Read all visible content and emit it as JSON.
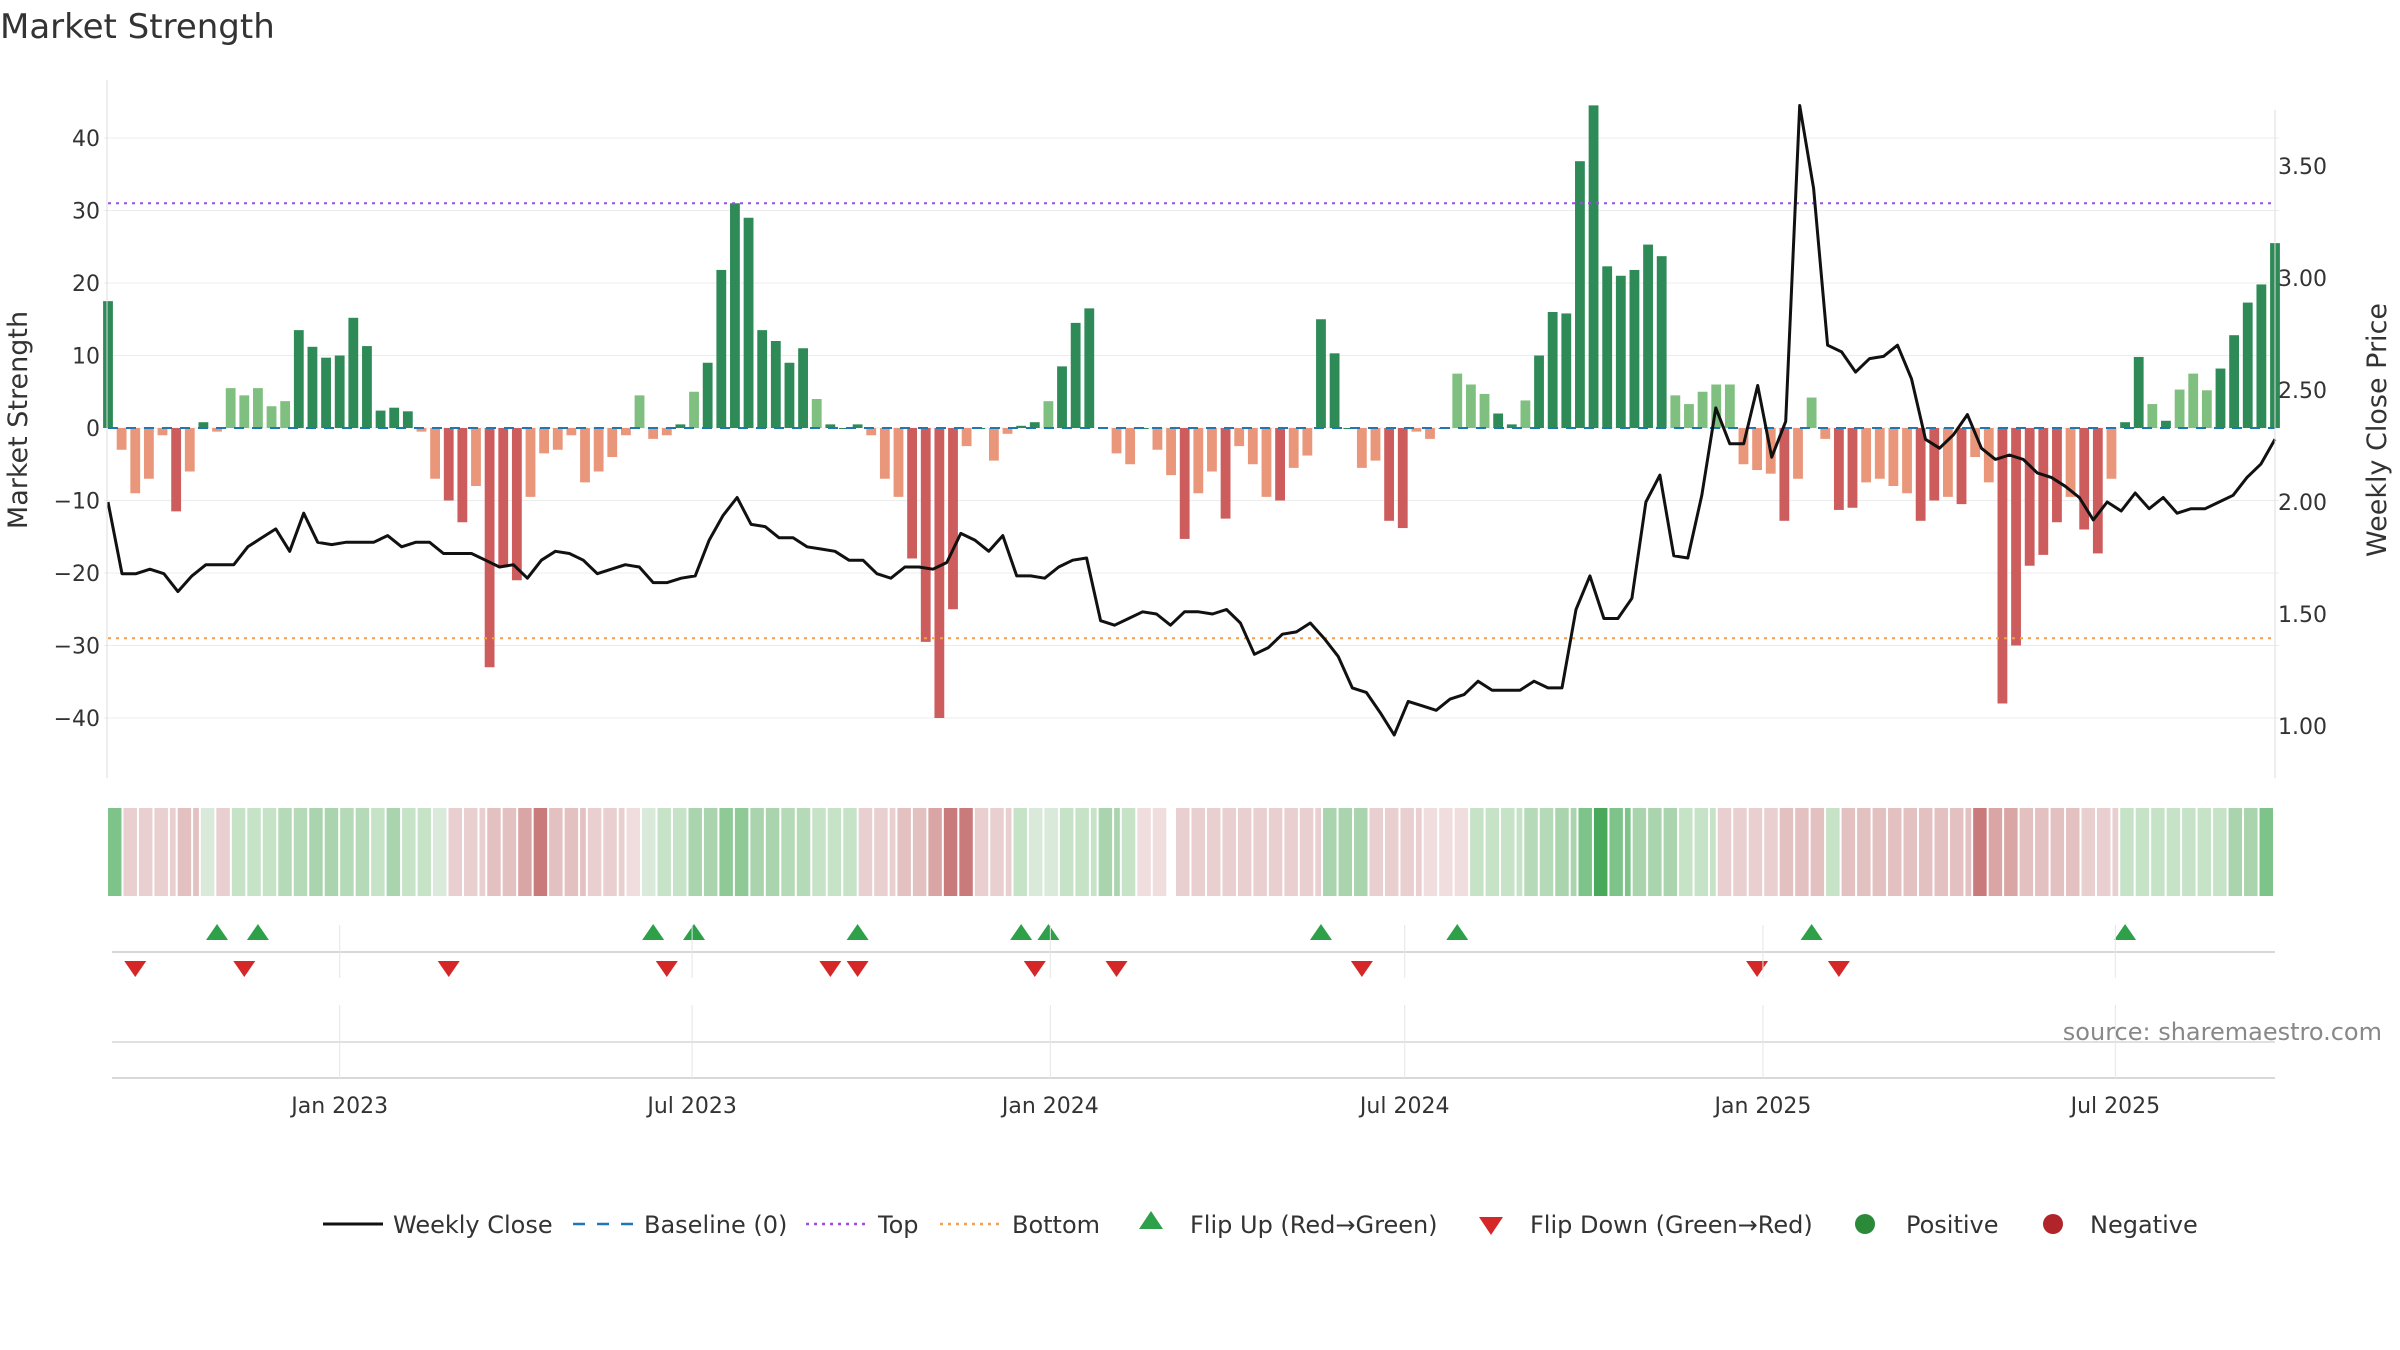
{
  "chart_data": {
    "type": "bar",
    "title": "Market Strength",
    "ylabel": "Market Strength",
    "y2label": "Weekly Close Price",
    "ylim": [
      -48,
      48
    ],
    "y2lim": [
      0.83,
      3.85
    ],
    "yticks": [
      40,
      30,
      20,
      10,
      0,
      -10,
      -20,
      -30,
      -40
    ],
    "yticklabels": [
      "40",
      "30",
      "20",
      "10",
      "0",
      "−10",
      "−20",
      "−30",
      "−40"
    ],
    "y2ticks": [
      3.5,
      3.0,
      2.5,
      2.0,
      1.5,
      1.0
    ],
    "y2ticklabels": [
      "3.50",
      "3.00",
      "2.50",
      "2.00",
      "1.50",
      "1.00"
    ],
    "x_date_range": [
      "2022-09-04",
      "2025-09-21"
    ],
    "xticks": [
      {
        "date": "2023-01-01",
        "label": "Jan 2023"
      },
      {
        "date": "2023-07-01",
        "label": "Jul 2023"
      },
      {
        "date": "2024-01-01",
        "label": "Jan 2024"
      },
      {
        "date": "2024-07-01",
        "label": "Jul 2024"
      },
      {
        "date": "2025-01-01",
        "label": "Jan 2025"
      },
      {
        "date": "2025-07-01",
        "label": "Jul 2025"
      }
    ],
    "top_threshold": 31,
    "bottom_threshold": -29,
    "grid": true,
    "legend_position": "bottom",
    "start_date": "2022-09-04",
    "market_strength": [
      17.5,
      -3,
      -9,
      -7,
      -1,
      -11.5,
      -6,
      0.8,
      -0.5,
      5.5,
      4.5,
      5.5,
      3,
      3.7,
      13.5,
      11.2,
      9.7,
      10,
      15.2,
      11.3,
      2.4,
      2.8,
      2.3,
      -0.5,
      -7,
      -10,
      -13,
      -8,
      -33,
      -19,
      -21,
      -9.5,
      -3.5,
      -3,
      -1,
      -7.5,
      -6,
      -4,
      -1,
      4.5,
      -1.5,
      -1,
      0.5,
      5,
      9,
      21.8,
      31,
      29,
      13.5,
      12,
      9,
      11,
      4,
      0.5,
      0,
      0.5,
      -1,
      -7,
      -9.5,
      -18,
      -29.5,
      -40,
      -25,
      -2.5,
      0,
      -4.5,
      -0.8,
      0.3,
      0.8,
      3.7,
      8.5,
      14.5,
      16.5,
      0,
      -3.5,
      -5,
      0,
      -3,
      -6.5,
      -15.3,
      -9,
      -6,
      -12.5,
      -2.5,
      -5,
      -9.5,
      -10,
      -5.5,
      -3.8,
      15,
      10.3,
      0,
      -5.5,
      -4.5,
      -12.8,
      -13.8,
      -0.5,
      -1.5,
      0,
      7.5,
      6,
      4.7,
      2,
      0.5,
      3.8,
      10,
      16,
      15.8,
      36.8,
      44.5,
      22.3,
      21,
      21.8,
      25.3,
      23.7,
      4.5,
      3.3,
      5,
      6,
      6,
      -5,
      -5.8,
      -6.3,
      -12.8,
      -7,
      4.2,
      -1.5,
      -11.3,
      -11,
      -7.5,
      -7,
      -8,
      -9,
      -12.8,
      -10,
      -9.5,
      -10.5,
      -4,
      -7.5,
      -38,
      -30,
      -19,
      -17.5,
      -13,
      -9.5,
      -14,
      -17.3,
      -7,
      0.8,
      9.8,
      3.3,
      1,
      5.3,
      7.5,
      5.2,
      8.2,
      12.8,
      17.3,
      19.8,
      25.5
    ],
    "weekly_close": [
      2.0,
      1.68,
      1.68,
      1.7,
      1.68,
      1.6,
      1.67,
      1.72,
      1.72,
      1.72,
      1.8,
      1.84,
      1.88,
      1.78,
      1.95,
      1.82,
      1.81,
      1.82,
      1.82,
      1.82,
      1.85,
      1.8,
      1.82,
      1.82,
      1.77,
      1.77,
      1.77,
      1.74,
      1.71,
      1.72,
      1.66,
      1.74,
      1.78,
      1.77,
      1.74,
      1.68,
      1.7,
      1.72,
      1.71,
      1.64,
      1.64,
      1.66,
      1.67,
      1.83,
      1.94,
      2.02,
      1.9,
      1.89,
      1.84,
      1.84,
      1.8,
      1.79,
      1.78,
      1.74,
      1.74,
      1.68,
      1.66,
      1.71,
      1.71,
      1.7,
      1.73,
      1.86,
      1.83,
      1.78,
      1.85,
      1.67,
      1.67,
      1.66,
      1.71,
      1.74,
      1.75,
      1.47,
      1.45,
      1.48,
      1.51,
      1.5,
      1.45,
      1.51,
      1.51,
      1.5,
      1.52,
      1.46,
      1.32,
      1.35,
      1.41,
      1.42,
      1.46,
      1.39,
      1.31,
      1.17,
      1.15,
      1.06,
      0.96,
      1.11,
      1.09,
      1.07,
      1.12,
      1.14,
      1.2,
      1.16,
      1.16,
      1.16,
      1.2,
      1.17,
      1.17,
      1.52,
      1.67,
      1.48,
      1.48,
      1.57,
      2.0,
      2.12,
      1.76,
      1.75,
      2.03,
      2.42,
      2.26,
      2.26,
      2.52,
      2.2,
      2.36,
      3.77,
      3.4,
      2.7,
      2.67,
      2.58,
      2.64,
      2.65,
      2.7,
      2.55,
      2.28,
      2.24,
      2.3,
      2.39,
      2.24,
      2.19,
      2.21,
      2.19,
      2.13,
      2.11,
      2.07,
      2.02,
      1.92,
      2.0,
      1.96,
      2.04,
      1.97,
      2.02,
      1.95,
      1.97,
      1.97,
      2.0,
      2.03,
      2.11,
      2.17,
      2.28
    ],
    "heat_strip": [
      [
        0,
        4,
        "#7ec48a"
      ],
      [
        4,
        18,
        "#e9cfcf"
      ],
      [
        18,
        24,
        "#e4c1c1"
      ],
      [
        24,
        28,
        "#d9e9da"
      ],
      [
        28,
        32,
        "#e9cfcf"
      ],
      [
        32,
        44,
        "#c6e3c8"
      ],
      [
        44,
        52,
        "#b4dab7"
      ],
      [
        52,
        60,
        "#a9d4ad"
      ],
      [
        60,
        68,
        "#b4dab7"
      ],
      [
        68,
        72,
        "#c6e3c8"
      ],
      [
        72,
        76,
        "#a9d4ad"
      ],
      [
        76,
        84,
        "#c6e3c8"
      ],
      [
        84,
        88,
        "#d9e9da"
      ],
      [
        88,
        98,
        "#e9cfcf"
      ],
      [
        98,
        106,
        "#e4c1c1"
      ],
      [
        106,
        110,
        "#d9a5a5"
      ],
      [
        110,
        114,
        "#c97a7a"
      ],
      [
        114,
        124,
        "#e4c1c1"
      ],
      [
        124,
        134,
        "#e9cfcf"
      ],
      [
        134,
        138,
        "#f0dede"
      ],
      [
        138,
        142,
        "#d9e9da"
      ],
      [
        142,
        150,
        "#c6e3c8"
      ],
      [
        150,
        158,
        "#a9d4ad"
      ],
      [
        158,
        166,
        "#8ec996"
      ],
      [
        166,
        174,
        "#a9d4ad"
      ],
      [
        174,
        182,
        "#b4dab7"
      ],
      [
        182,
        194,
        "#c6e3c8"
      ],
      [
        194,
        204,
        "#e9cfcf"
      ],
      [
        204,
        212,
        "#e4c1c1"
      ],
      [
        212,
        216,
        "#d9a5a5"
      ],
      [
        216,
        224,
        "#c97a7a"
      ],
      [
        224,
        234,
        "#e9cfcf"
      ],
      [
        234,
        238,
        "#c6e3c8"
      ],
      [
        238,
        246,
        "#d9e9da"
      ],
      [
        246,
        256,
        "#c6e3c8"
      ],
      [
        256,
        262,
        "#a9d4ad"
      ],
      [
        262,
        266,
        "#c6e3c8"
      ],
      [
        266,
        274,
        "#f0dede"
      ],
      [
        274,
        276,
        "#ffffff"
      ],
      [
        276,
        314,
        "#e9cfcf"
      ],
      [
        314,
        326,
        "#a9d4ad"
      ],
      [
        326,
        340,
        "#e9cfcf"
      ],
      [
        340,
        352,
        "#f0dede"
      ],
      [
        352,
        366,
        "#c6e3c8"
      ],
      [
        366,
        374,
        "#b4dab7"
      ],
      [
        374,
        380,
        "#a9d4ad"
      ],
      [
        380,
        384,
        "#7ec48a"
      ],
      [
        384,
        388,
        "#4aa85b"
      ],
      [
        388,
        394,
        "#7ec48a"
      ],
      [
        394,
        406,
        "#a9d4ad"
      ],
      [
        406,
        416,
        "#c6e3c8"
      ],
      [
        416,
        432,
        "#e9cfcf"
      ],
      [
        432,
        444,
        "#e4c1c1"
      ],
      [
        444,
        448,
        "#c6e3c8"
      ],
      [
        448,
        482,
        "#e4c1c1"
      ],
      [
        482,
        486,
        "#c97a7a"
      ],
      [
        486,
        494,
        "#d9a5a5"
      ],
      [
        494,
        510,
        "#e4c1c1"
      ],
      [
        510,
        520,
        "#e9cfcf"
      ],
      [
        520,
        548,
        "#c6e3c8"
      ],
      [
        548,
        556,
        "#a9d4ad"
      ],
      [
        556,
        560,
        "#7ec48a"
      ]
    ],
    "flip_up": [
      "2022-10-30",
      "2022-11-20",
      "2023-06-11",
      "2023-07-02",
      "2023-09-24",
      "2023-12-17",
      "2023-12-31",
      "2024-05-19",
      "2024-07-28",
      "2025-01-26",
      "2025-07-06"
    ],
    "flip_down": [
      "2022-09-18",
      "2022-11-13",
      "2023-02-26",
      "2023-06-18",
      "2023-09-10",
      "2023-09-24",
      "2023-12-24",
      "2024-02-04",
      "2024-06-09",
      "2024-12-29",
      "2025-02-09"
    ],
    "legend": [
      {
        "label": "Weekly Close",
        "color": "#111111",
        "kind": "line"
      },
      {
        "label": "Baseline (0)",
        "color": "#1f77b4",
        "kind": "dash"
      },
      {
        "label": "Top",
        "color": "#9a4fe0",
        "kind": "dot"
      },
      {
        "label": "Bottom",
        "color": "#f0a050",
        "kind": "dot"
      },
      {
        "label": "Flip Up (Red→Green)",
        "color": "#2ea04a",
        "kind": "tri-up"
      },
      {
        "label": "Flip Down (Green→Red)",
        "color": "#d62728",
        "kind": "tri-down"
      },
      {
        "label": "Positive",
        "color": "#2a8a3a",
        "kind": "circle"
      },
      {
        "label": "Negative",
        "color": "#b0242a",
        "kind": "circle"
      }
    ],
    "source": "source: sharemaestro.com"
  },
  "colors": {
    "strong_pos": "#2e8b57",
    "weak_pos": "#7fbf7f",
    "strong_neg": "#cd5c5c",
    "weak_neg": "#e9967a",
    "baseline": "#1f77b4",
    "top_line": "#9a4fe0",
    "bottom_line": "#f0a050",
    "price_line": "#111111",
    "flip_up": "#2ea04a",
    "flip_down": "#d62728"
  }
}
